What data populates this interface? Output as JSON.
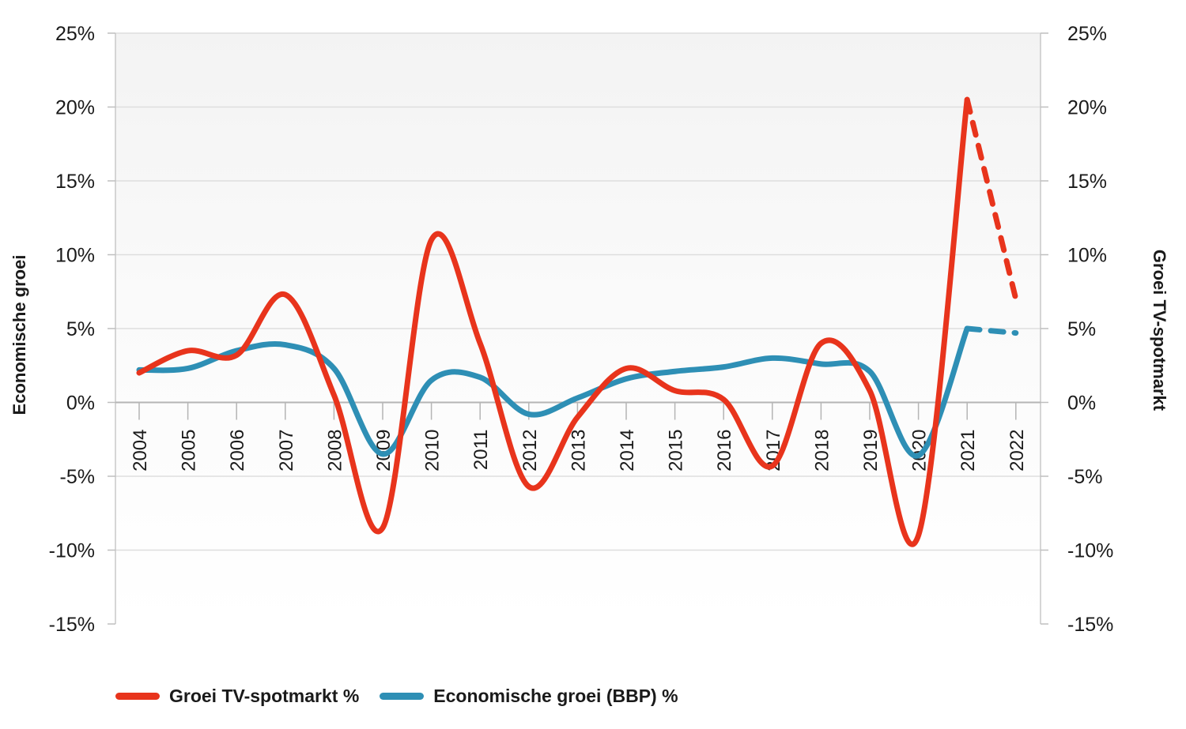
{
  "chart_data": {
    "type": "line",
    "categories": [
      "2004",
      "2005",
      "2006",
      "2007",
      "2008",
      "2009",
      "2010",
      "2011",
      "2012",
      "2013",
      "2014",
      "2015",
      "2016",
      "2017",
      "2018",
      "2019",
      "2020",
      "2021",
      "2022"
    ],
    "series": [
      {
        "name": "Groei TV-spotmarkt %",
        "color": "#e8341c",
        "values": [
          2.0,
          3.5,
          3.2,
          7.3,
          0.5,
          -8.5,
          11.0,
          4.0,
          -5.7,
          -1.0,
          2.3,
          0.8,
          0.2,
          -4.3,
          4.0,
          0.8,
          -9.0,
          20.5,
          7.0
        ],
        "dashed_from_index": 17
      },
      {
        "name": "Economische groei (BBP) %",
        "color": "#2e8fb5",
        "values": [
          2.2,
          2.3,
          3.5,
          3.9,
          2.3,
          -3.5,
          1.5,
          1.7,
          -0.8,
          0.3,
          1.6,
          2.1,
          2.4,
          3.0,
          2.6,
          2.1,
          -3.6,
          5.0,
          4.7
        ],
        "dashed_from_index": 17
      }
    ],
    "ylabel_left": "Economische groei",
    "ylabel_right": "Groei TV-spotmarkt",
    "ylim": [
      -15,
      25
    ],
    "yticks": [
      25,
      20,
      15,
      10,
      5,
      0,
      -5,
      -10,
      -15
    ],
    "ytick_labels": [
      "25%",
      "20%",
      "15%",
      "10%",
      "5%",
      "0%",
      "-5%",
      "-10%",
      "-15%"
    ],
    "grid": true,
    "legend_position": "bottom-left"
  }
}
